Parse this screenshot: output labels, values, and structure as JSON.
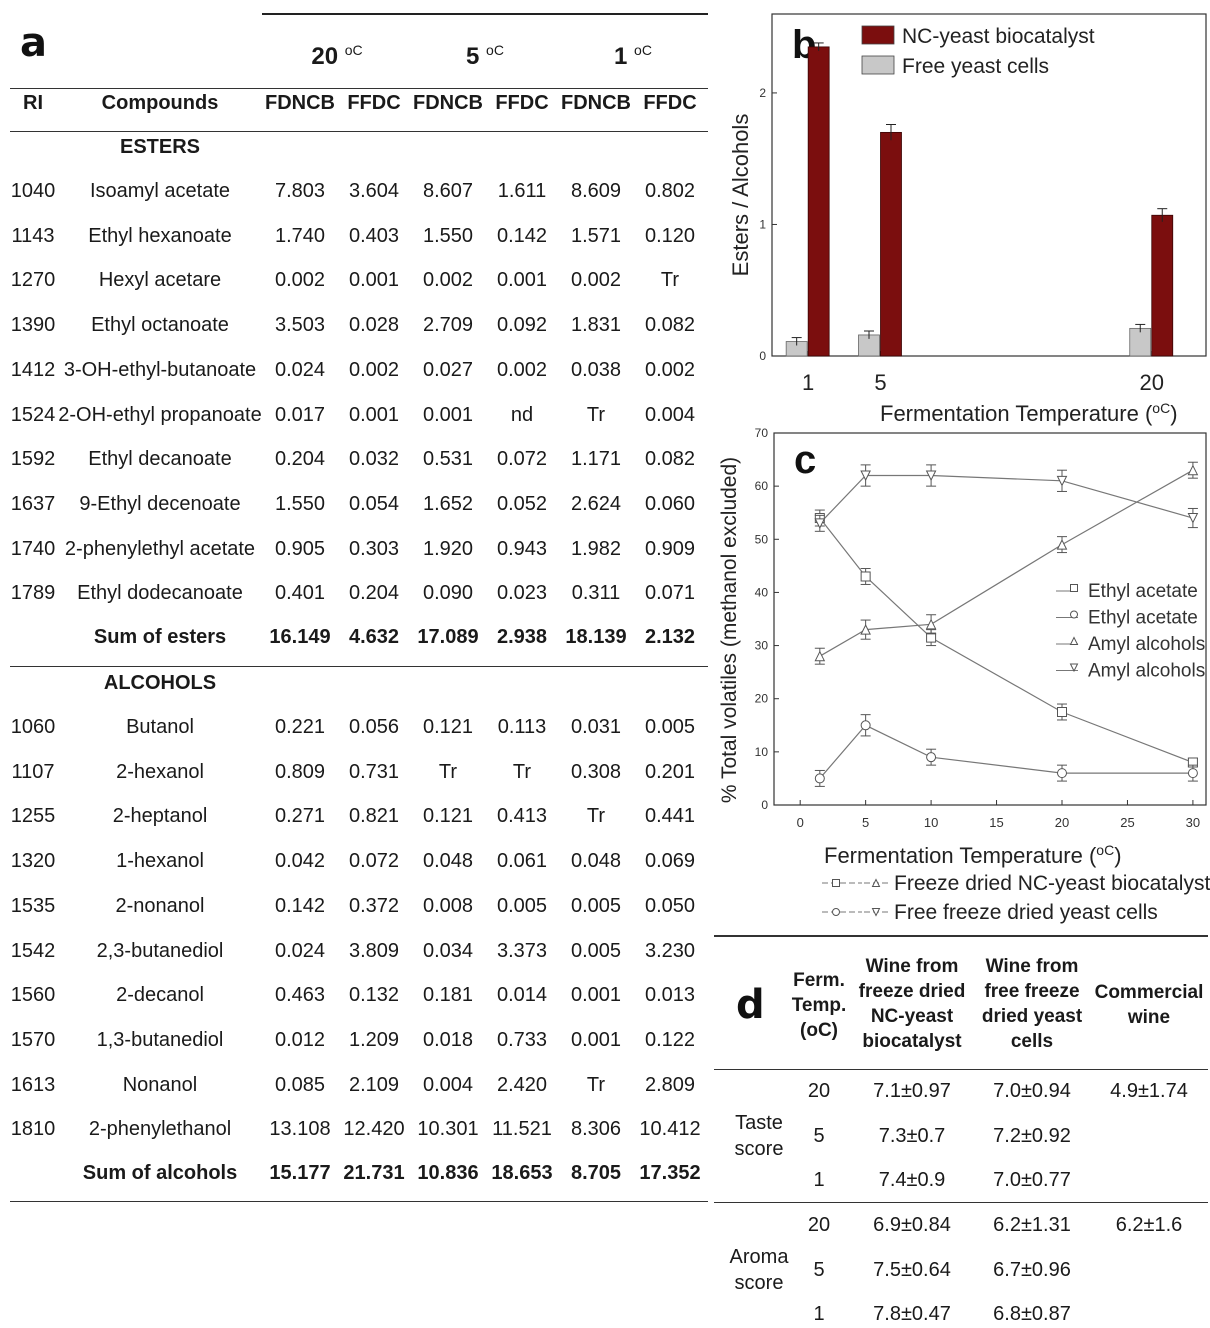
{
  "panel_a": {
    "label": "a",
    "temps": [
      {
        "value": "20",
        "unit": "oC"
      },
      {
        "value": "5",
        "unit": "oC"
      },
      {
        "value": "1",
        "unit": "oC"
      }
    ],
    "columns": [
      "RI",
      "Compounds",
      "FDNCB",
      "FFDC",
      "FDNCB",
      "FFDC",
      "FDNCB",
      "FFDC"
    ],
    "esters_heading": "ESTERS",
    "esters": [
      [
        "1040",
        "Isoamyl acetate",
        "7.803",
        "3.604",
        "8.607",
        "1.611",
        "8.609",
        "0.802"
      ],
      [
        "1143",
        "Ethyl hexanoate",
        "1.740",
        "0.403",
        "1.550",
        "0.142",
        "1.571",
        "0.120"
      ],
      [
        "1270",
        "Hexyl acetare",
        "0.002",
        "0.001",
        "0.002",
        "0.001",
        "0.002",
        "Tr"
      ],
      [
        "1390",
        "Ethyl octanoate",
        "3.503",
        "0.028",
        "2.709",
        "0.092",
        "1.831",
        "0.082"
      ],
      [
        "1412",
        "3-OH-ethyl-butanoate",
        "0.024",
        "0.002",
        "0.027",
        "0.002",
        "0.038",
        "0.002"
      ],
      [
        "1524",
        "2-OH-ethyl propanoate",
        "0.017",
        "0.001",
        "0.001",
        "nd",
        "Tr",
        "0.004"
      ],
      [
        "1592",
        "Ethyl decanoate",
        "0.204",
        "0.032",
        "0.531",
        "0.072",
        "1.171",
        "0.082"
      ],
      [
        "1637",
        "9-Ethyl decenoate",
        "1.550",
        "0.054",
        "1.652",
        "0.052",
        "2.624",
        "0.060"
      ],
      [
        "1740",
        "2-phenylethyl acetate",
        "0.905",
        "0.303",
        "1.920",
        "0.943",
        "1.982",
        "0.909"
      ],
      [
        "1789",
        "Ethyl dodecanoate",
        "0.401",
        "0.204",
        "0.090",
        "0.023",
        "0.311",
        "0.071"
      ]
    ],
    "esters_sum": [
      "",
      "Sum of esters",
      "16.149",
      "4.632",
      "17.089",
      "2.938",
      "18.139",
      "2.132"
    ],
    "alcohols_heading": "ALCOHOLS",
    "alcohols": [
      [
        "1060",
        "Butanol",
        "0.221",
        "0.056",
        "0.121",
        "0.113",
        "0.031",
        "0.005"
      ],
      [
        "1107",
        "2-hexanol",
        "0.809",
        "0.731",
        "Tr",
        "Tr",
        "0.308",
        "0.201"
      ],
      [
        "1255",
        "2-heptanol",
        "0.271",
        "0.821",
        "0.121",
        "0.413",
        "Tr",
        "0.441"
      ],
      [
        "1320",
        "1-hexanol",
        "0.042",
        "0.072",
        "0.048",
        "0.061",
        "0.048",
        "0.069"
      ],
      [
        "1535",
        "2-nonanol",
        "0.142",
        "0.372",
        "0.008",
        "0.005",
        "0.005",
        "0.050"
      ],
      [
        "1542",
        "2,3-butanediol",
        "0.024",
        "3.809",
        "0.034",
        "3.373",
        "0.005",
        "3.230"
      ],
      [
        "1560",
        "2-decanol",
        "0.463",
        "0.132",
        "0.181",
        "0.014",
        "0.001",
        "0.013"
      ],
      [
        "1570",
        "1,3-butanediol",
        "0.012",
        "1.209",
        "0.018",
        "0.733",
        "0.001",
        "0.122"
      ],
      [
        "1613",
        "Nonanol",
        "0.085",
        "2.109",
        "0.004",
        "2.420",
        "Tr",
        "2.809"
      ],
      [
        "1810",
        "2-phenylethanol",
        "13.108",
        "12.420",
        "10.301",
        "11.521",
        "8.306",
        "10.412"
      ]
    ],
    "alcohols_sum": [
      "",
      "Sum of alcohols",
      "15.177",
      "21.731",
      "10.836",
      "18.653",
      "8.705",
      "17.352"
    ]
  },
  "chart_data": [
    {
      "panel": "b",
      "type": "bar",
      "categories": [
        "1",
        "5",
        "20"
      ],
      "x": [
        1,
        5,
        20
      ],
      "series": [
        {
          "name": "NC-yeast biocatalyst",
          "values": [
            2.35,
            1.7,
            1.07
          ],
          "errors": [
            0.03,
            0.06,
            0.05
          ],
          "color": "#7b0e0e"
        },
        {
          "name": "Free yeast cells",
          "values": [
            0.11,
            0.16,
            0.21
          ],
          "errors": [
            0.03,
            0.03,
            0.03
          ],
          "color": "#c8c8c8"
        }
      ],
      "xlabel": "Fermentation Temperature (oC)",
      "ylabel": "Esters / Alcohols",
      "yticks": [
        "0",
        "1",
        "2"
      ],
      "xlim": [
        -1,
        23
      ],
      "ylim": [
        0,
        2.6
      ],
      "legend": "top-left"
    },
    {
      "panel": "c",
      "type": "line",
      "x_ticks": [
        "0",
        "5",
        "10",
        "15",
        "20",
        "25",
        "30"
      ],
      "y_ticks": [
        "0",
        "10",
        "20",
        "30",
        "40",
        "50",
        "60",
        "70"
      ],
      "xlim": [
        -2,
        31
      ],
      "ylim": [
        0,
        70
      ],
      "xlabel": "Fermentation Temperature (oC)",
      "ylabel": "% Total volatiles (methanol excluded)",
      "series": [
        {
          "name": "Ethyl acetate",
          "marker": "square",
          "x": [
            1.5,
            5,
            10,
            20,
            30
          ],
          "values": [
            54,
            43,
            31.5,
            17.5,
            8
          ],
          "errors": [
            1.5,
            1.5,
            1.5,
            1.5,
            0.8
          ]
        },
        {
          "name": "Ethyl acetate",
          "marker": "circle",
          "x": [
            1.5,
            5,
            10,
            20,
            30
          ],
          "values": [
            5,
            15,
            9,
            6,
            6
          ],
          "errors": [
            1.5,
            2,
            1.5,
            1.5,
            1.5
          ]
        },
        {
          "name": "Amyl alcohols",
          "marker": "triangle-up",
          "x": [
            1.5,
            5,
            10,
            20,
            30
          ],
          "values": [
            28,
            33,
            34,
            49,
            63
          ],
          "errors": [
            1.5,
            1.8,
            1.8,
            1.5,
            1.5
          ]
        },
        {
          "name": "Amyl alcohols",
          "marker": "triangle-down",
          "x": [
            1.5,
            5,
            10,
            20,
            30
          ],
          "values": [
            53,
            62,
            62,
            61,
            54
          ],
          "errors": [
            1.5,
            2,
            2,
            2,
            1.8
          ]
        }
      ],
      "legend": "right",
      "footnote_1": "Freeze dried NC-yeast biocatalyst",
      "footnote_2": "Free freeze dried yeast cells"
    }
  ],
  "panel_b": {
    "label": "b",
    "xlabel": "Fermentation Temperature (",
    "xlabel_unit": "oC",
    "xlabel_close": ")"
  },
  "panel_c": {
    "label": "c"
  },
  "panel_d": {
    "label": "d",
    "col_temp": [
      "Ferm.",
      "Temp.",
      "(oC)"
    ],
    "col_a": [
      "Wine from",
      "freeze dried",
      "NC-yeast",
      "biocatalyst"
    ],
    "col_b": [
      "Wine from",
      "free  freeze",
      "dried yeast",
      "cells"
    ],
    "col_c": [
      "Commercial",
      "wine"
    ],
    "taste": {
      "label": [
        "Taste",
        "score"
      ],
      "rows": [
        [
          "20",
          "7.1±0.97",
          "7.0±0.94",
          "4.9±1.74"
        ],
        [
          "5",
          "7.3±0.7",
          "7.2±0.92",
          ""
        ],
        [
          "1",
          "7.4±0.9",
          "7.0±0.77",
          ""
        ]
      ]
    },
    "aroma": {
      "label": [
        "Aroma",
        "score"
      ],
      "rows": [
        [
          "20",
          "6.9±0.84",
          "6.2±1.31",
          "6.2±1.6"
        ],
        [
          "5",
          "7.5±0.64",
          "6.7±0.96",
          ""
        ],
        [
          "1",
          "7.8±0.47",
          "6.8±0.87",
          ""
        ]
      ]
    }
  }
}
